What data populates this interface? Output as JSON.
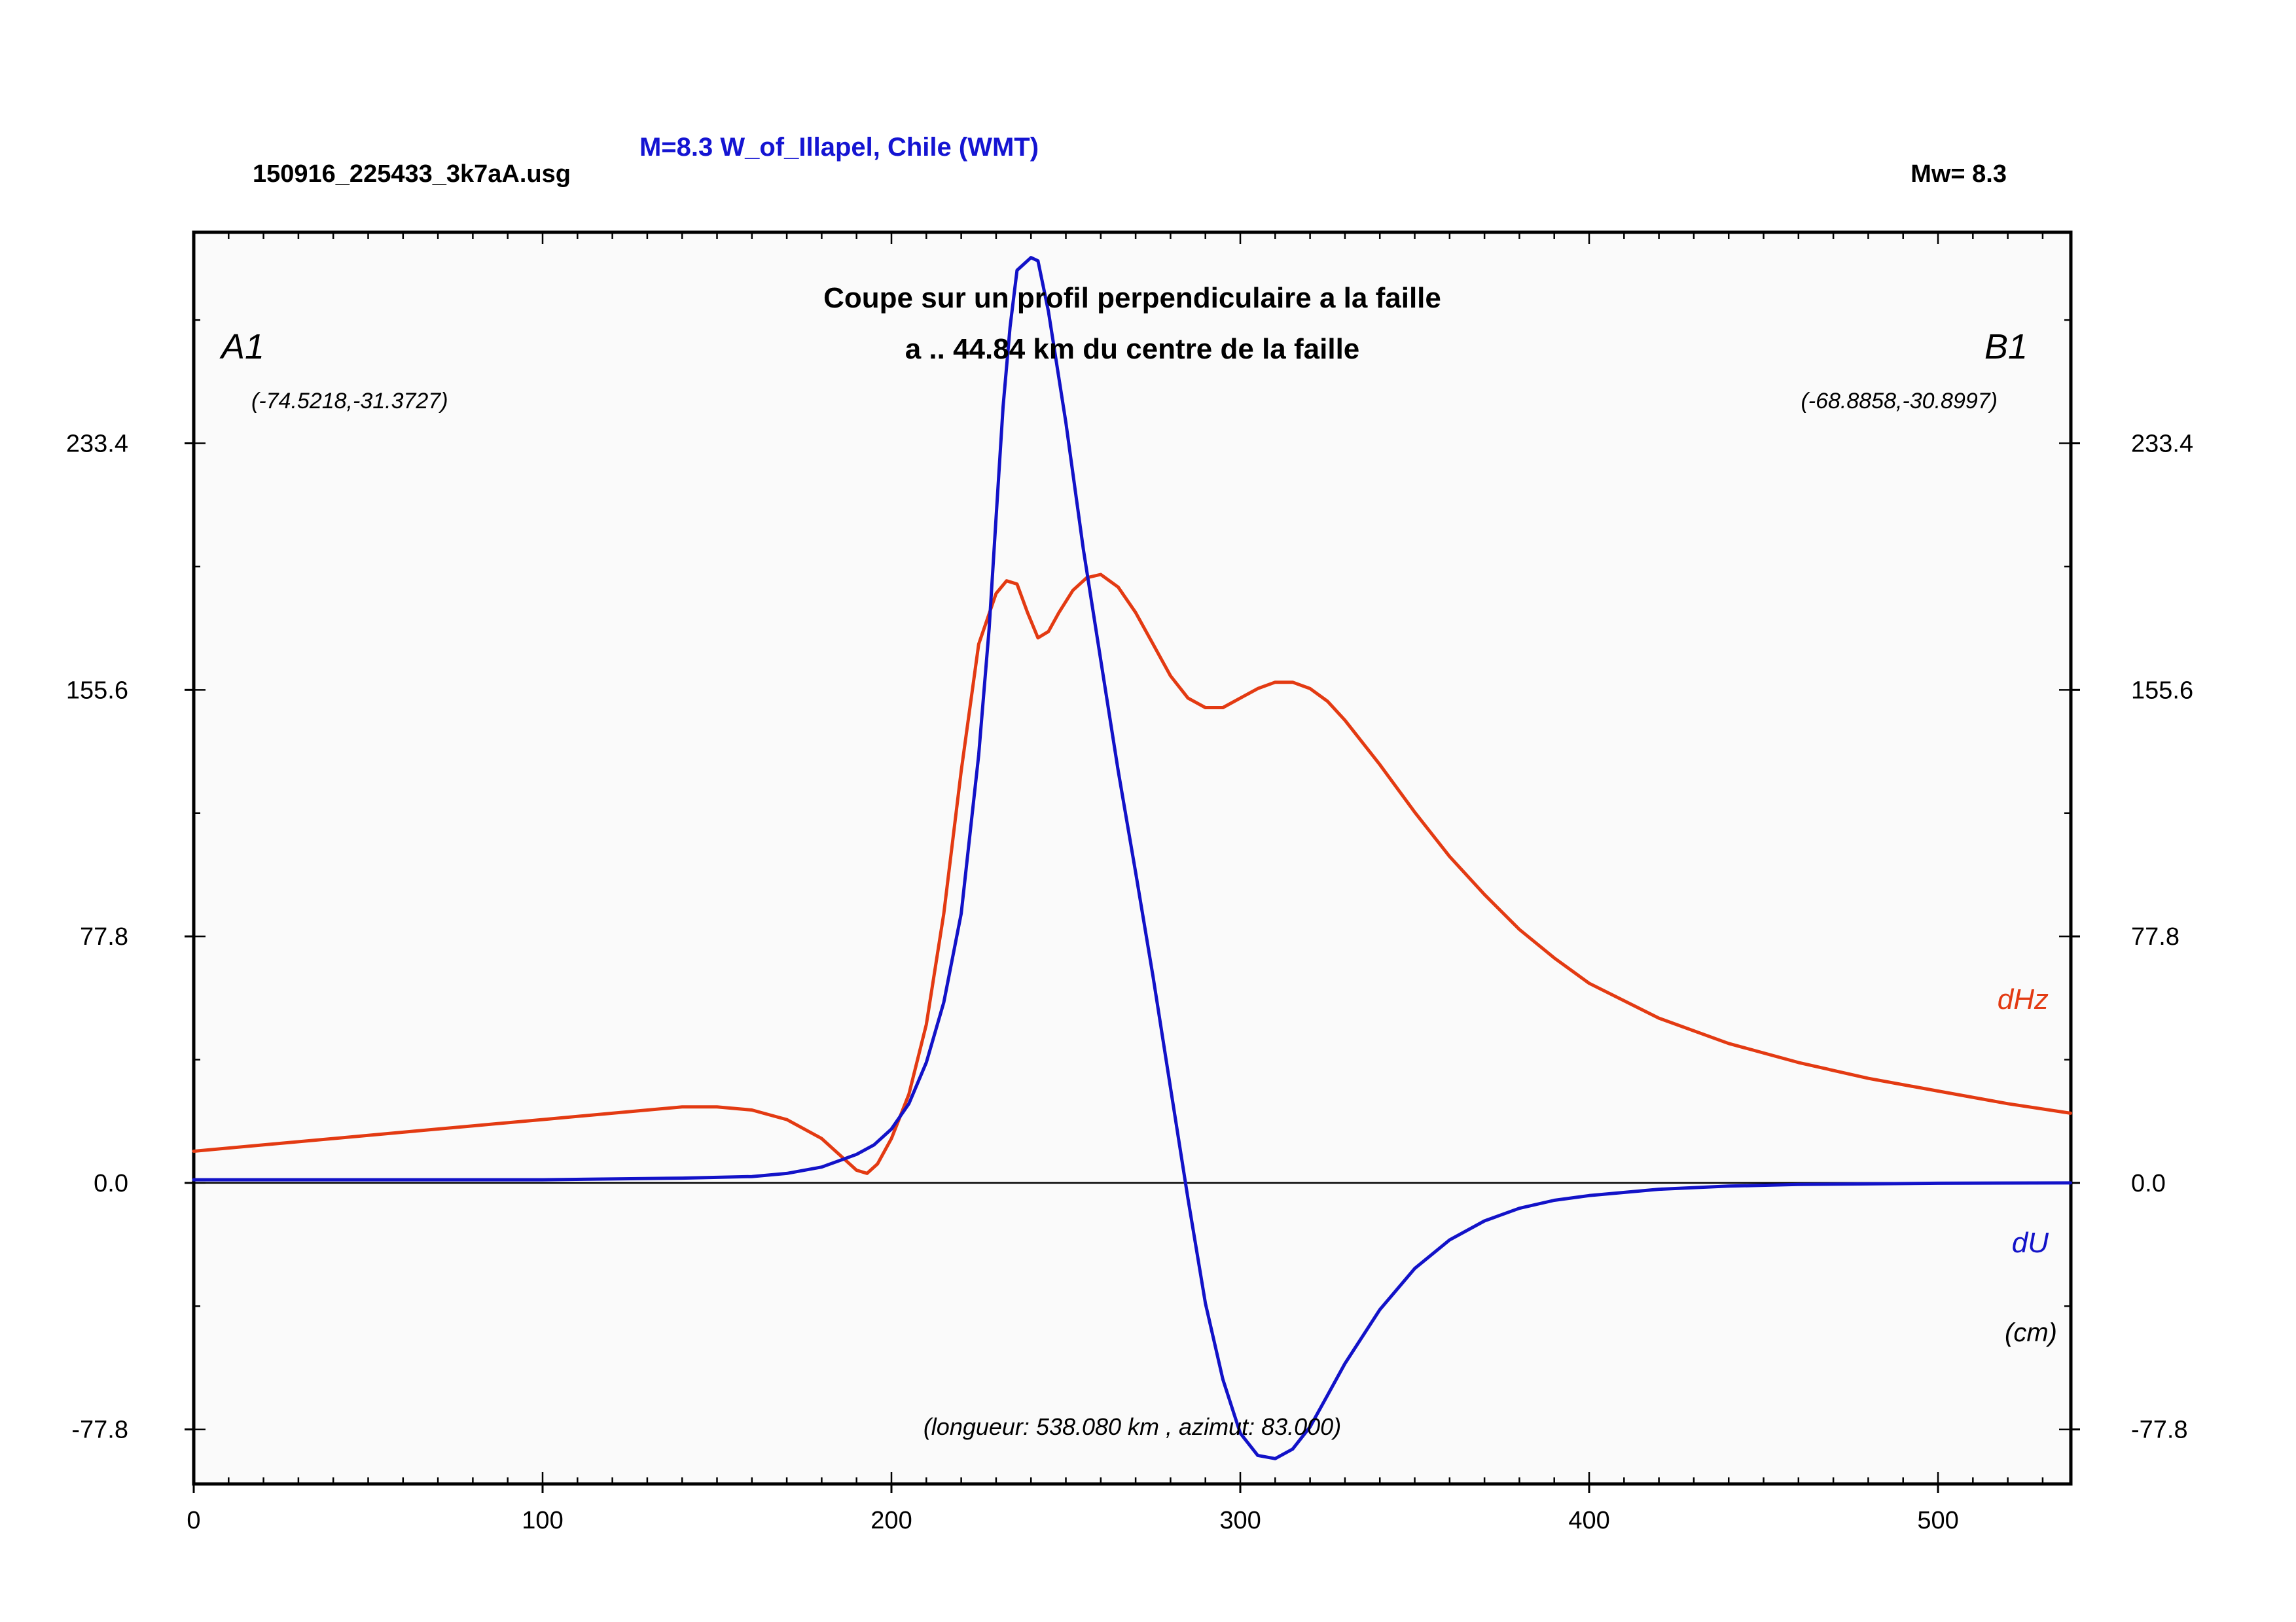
{
  "header": {
    "filename": "150916_225433_3k7aA.usg",
    "event_title": "M=8.3 W_of_Illapel, Chile (WMT)",
    "magnitude": "Mw= 8.3",
    "event_color": "#1414d2"
  },
  "plot": {
    "title_line1": "Coupe sur un profil perpendiculaire a la faille",
    "title_line2": "a .. 44.84 km du centre de la faille",
    "point_a": "A1",
    "point_b": "B1",
    "coord_a": "(-74.5218,-31.3727)",
    "coord_b": "(-68.8858,-30.8997)",
    "length_note": "(longueur: 538.080 km , azimut: 83.000)",
    "unit_label": "(cm)",
    "background": "#fafafa"
  },
  "chart_data": {
    "type": "line",
    "xlim": [
      0,
      538.08
    ],
    "ylim": [
      -95,
      300
    ],
    "x_ticks": [
      "0",
      "100",
      "200",
      "300",
      "400",
      "500"
    ],
    "y_ticks": [
      "233.4",
      "155.6",
      "77.8",
      "0.0",
      "-77.8"
    ],
    "zero_line": true,
    "series": [
      {
        "name": "dHz",
        "color": "#e33a12",
        "x": [
          0,
          20,
          40,
          60,
          80,
          100,
          120,
          140,
          150,
          160,
          170,
          180,
          185,
          190,
          193,
          196,
          200,
          205,
          210,
          215,
          220,
          225,
          230,
          233,
          236,
          239,
          242,
          245,
          248,
          252,
          256,
          260,
          265,
          270,
          275,
          280,
          285,
          290,
          295,
          300,
          305,
          310,
          315,
          320,
          325,
          330,
          340,
          350,
          360,
          370,
          380,
          390,
          400,
          420,
          440,
          460,
          480,
          500,
          520,
          538
        ],
        "y": [
          10,
          12,
          14,
          16,
          18,
          20,
          22,
          24,
          24,
          23,
          20,
          14,
          9,
          4,
          3,
          6,
          14,
          28,
          50,
          85,
          130,
          170,
          186,
          190,
          189,
          180,
          172,
          174,
          180,
          187,
          191,
          192,
          188,
          180,
          170,
          160,
          153,
          150,
          150,
          153,
          156,
          158,
          158,
          156,
          152,
          146,
          132,
          117,
          103,
          91,
          80,
          71,
          63,
          52,
          44,
          38,
          33,
          29,
          25,
          22
        ]
      },
      {
        "name": "dU",
        "color": "#1212c8",
        "x": [
          0,
          50,
          100,
          140,
          160,
          170,
          180,
          190,
          195,
          200,
          205,
          210,
          215,
          220,
          225,
          228,
          230,
          232,
          234,
          236,
          238,
          240,
          242,
          245,
          250,
          255,
          260,
          265,
          270,
          275,
          280,
          285,
          290,
          295,
          300,
          305,
          310,
          315,
          320,
          325,
          330,
          340,
          350,
          360,
          370,
          380,
          390,
          400,
          420,
          440,
          460,
          480,
          500,
          538
        ],
        "y": [
          1,
          1,
          1,
          1.5,
          2,
          3,
          5,
          9,
          12,
          17,
          25,
          38,
          57,
          85,
          135,
          175,
          210,
          245,
          270,
          288,
          290,
          292,
          291,
          275,
          240,
          200,
          165,
          130,
          98,
          65,
          30,
          -5,
          -38,
          -62,
          -79,
          -86,
          -87,
          -84,
          -77,
          -67,
          -57,
          -40,
          -27,
          -18,
          -12,
          -8,
          -5.5,
          -4,
          -2,
          -1,
          -0.5,
          -0.3,
          -0.1,
          0
        ]
      }
    ]
  }
}
